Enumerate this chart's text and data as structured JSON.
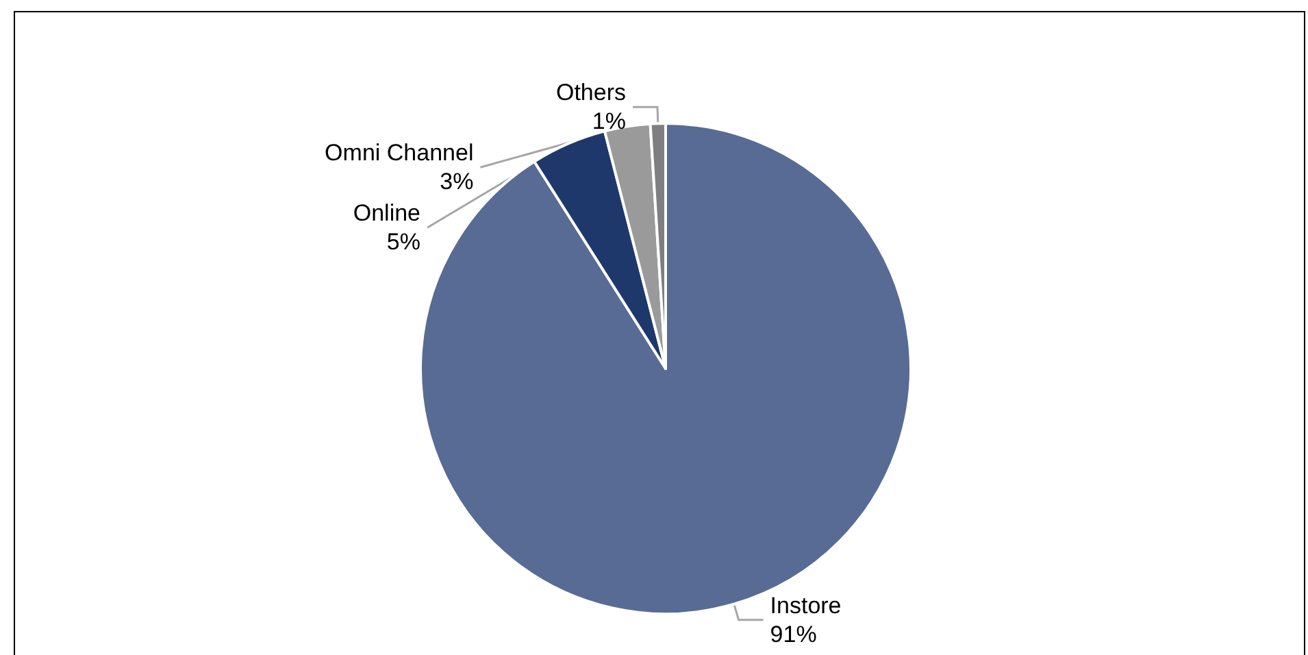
{
  "chart_data": {
    "type": "pie",
    "categories": [
      "Instore",
      "Online",
      "Omni Channel",
      "Others"
    ],
    "values": [
      91,
      5,
      3,
      1
    ],
    "value_labels": [
      "91%",
      "5%",
      "3%",
      "1%"
    ],
    "colors": [
      "#586b94",
      "#1f386c",
      "#9a9a9a",
      "#7f7f7f"
    ]
  }
}
